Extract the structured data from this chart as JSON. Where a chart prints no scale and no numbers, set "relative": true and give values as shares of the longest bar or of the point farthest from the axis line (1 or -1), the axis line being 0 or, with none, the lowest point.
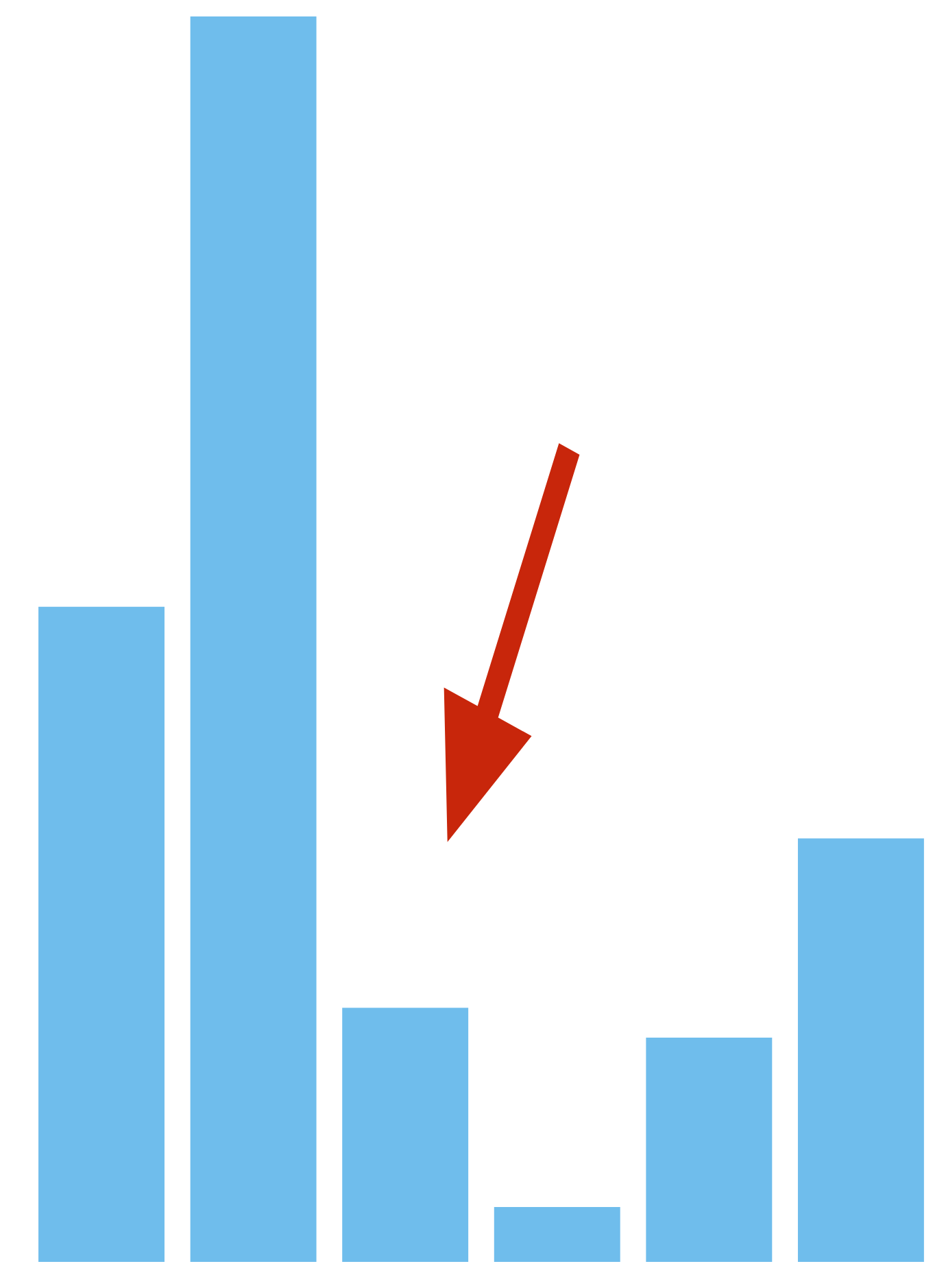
{
  "chart_data": {
    "type": "bar",
    "relative": true,
    "categories": [
      null,
      null,
      null,
      null,
      null,
      null
    ],
    "values": [
      0.526,
      1,
      0.204,
      0.044,
      0.18,
      0.34
    ],
    "color": "#6fbdec"
  }
}
